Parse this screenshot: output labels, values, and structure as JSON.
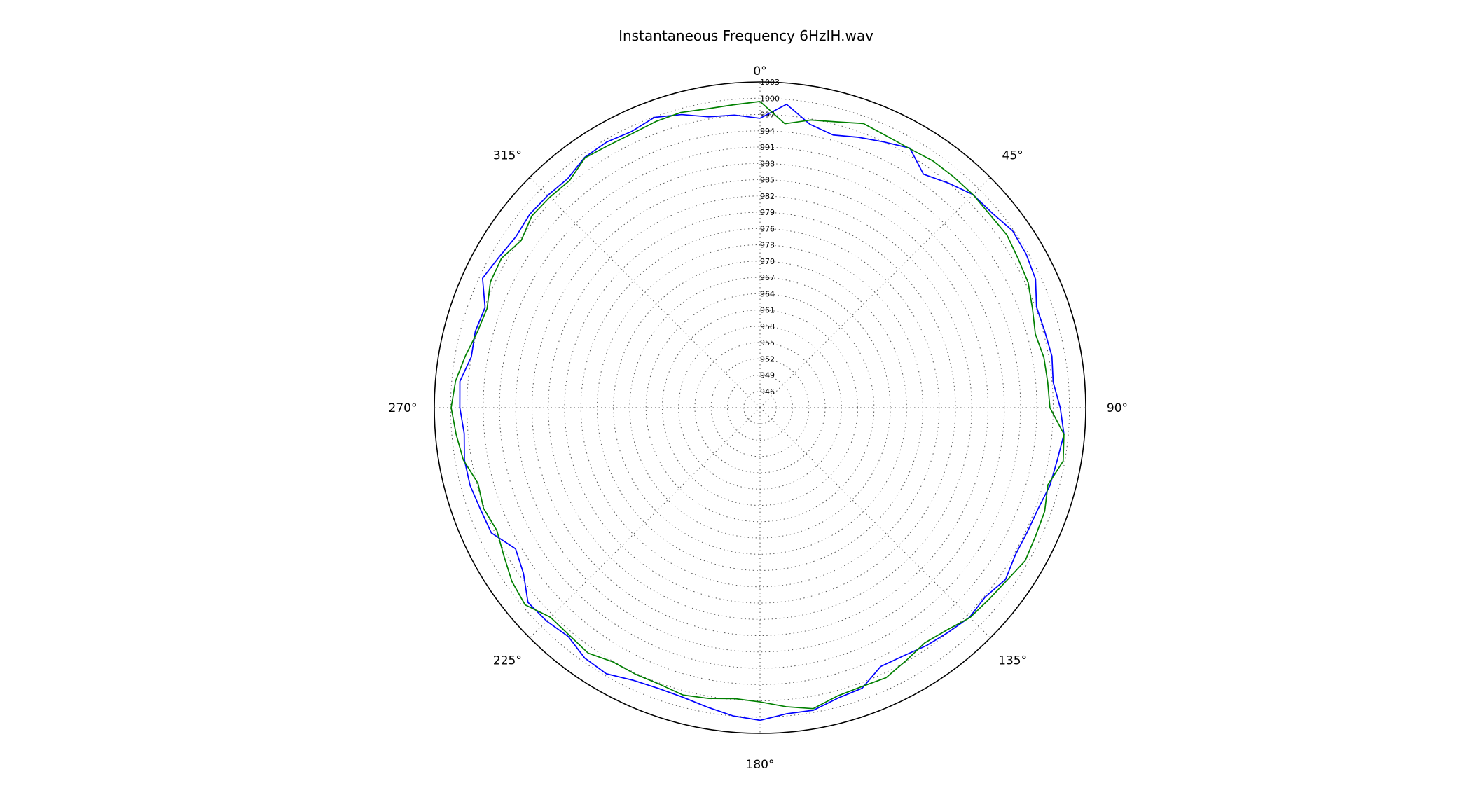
{
  "chart_data": {
    "type": "line",
    "projection": "polar",
    "title": "Instantaneous Frequency  6HzIH.wav",
    "theta_direction": "clockwise",
    "theta_zero": "top",
    "theta_ticks": [
      {
        "deg": 0,
        "label": "0°"
      },
      {
        "deg": 45,
        "label": "45°"
      },
      {
        "deg": 90,
        "label": "90°"
      },
      {
        "deg": 135,
        "label": "135°"
      },
      {
        "deg": 180,
        "label": "180°"
      },
      {
        "deg": 225,
        "label": "225°"
      },
      {
        "deg": 270,
        "label": "270°"
      },
      {
        "deg": 315,
        "label": "315°"
      }
    ],
    "rlim": [
      943,
      1003
    ],
    "r_ticks": [
      946,
      949,
      952,
      955,
      958,
      961,
      964,
      967,
      970,
      973,
      976,
      979,
      982,
      985,
      988,
      991,
      994,
      997,
      1000,
      1003
    ],
    "grid": true,
    "colors": {
      "series_1": "#0000ff",
      "series_2": "#008000"
    },
    "series": [
      {
        "color": "#0000ff",
        "theta": [
          0,
          5,
          10,
          15,
          20,
          25,
          30,
          35,
          40,
          45,
          50,
          55,
          60,
          65,
          70,
          75,
          80,
          85,
          90,
          95,
          100,
          105,
          110,
          115,
          120,
          125,
          130,
          135,
          140,
          145,
          150,
          155,
          160,
          165,
          170,
          175,
          180,
          185,
          190,
          195,
          200,
          205,
          210,
          215,
          220,
          225,
          230,
          235,
          240,
          245,
          250,
          255,
          260,
          265,
          270,
          275,
          280,
          285,
          290,
          295,
          300,
          305,
          310,
          315,
          320,
          325,
          330,
          335,
          340,
          345,
          350,
          355,
          360
        ],
        "r": [
          996.3,
          999.1,
          996.0,
          995.0,
          996.0,
          997.0,
          998.2,
          995.5,
          997.0,
          998.5,
          998.8,
          999.8,
          999.6,
          999.0,
          997.2,
          997.3,
          997.6,
          997.2,
          998.3,
          999.2,
          998.6,
          998.3,
          997.5,
          997.3,
          997.3,
          998.2,
          997.2,
          997.6,
          997.0,
          996.5,
          995.8,
          995.6,
          998.0,
          998.4,
          999.6,
          999.6,
          1000.6,
          1000.0,
          999.0,
          998.2,
          998.0,
          998.4,
          999.6,
          999.3,
          998.0,
          998.6,
          998.8,
          996.2,
          995.0,
          997.6,
          997.8,
          998.3,
          998.3,
          997.7,
          998.3,
          998.5,
          997.0,
          997.3,
          996.9,
          999.4,
          998.5,
          997.9,
          998.4,
          998.3,
          998.1,
          999.3,
          999.5,
          999.1,
          999.9,
          998.9,
          997.4,
          997.1,
          996.3
        ]
      },
      {
        "color": "#008000",
        "theta": [
          0,
          5,
          10,
          15,
          20,
          25,
          30,
          35,
          40,
          45,
          50,
          55,
          60,
          65,
          70,
          75,
          80,
          85,
          90,
          95,
          100,
          105,
          110,
          115,
          120,
          125,
          130,
          135,
          140,
          145,
          150,
          155,
          160,
          165,
          170,
          175,
          180,
          185,
          190,
          195,
          200,
          205,
          210,
          215,
          220,
          225,
          230,
          235,
          240,
          245,
          250,
          255,
          260,
          265,
          270,
          275,
          280,
          285,
          290,
          295,
          300,
          305,
          310,
          315,
          320,
          325,
          330,
          335,
          340,
          345,
          350,
          355,
          360
        ],
        "r": [
          999.4,
          995.5,
          996.8,
          997.5,
          998.7,
          998.2,
          998.1,
          998.5,
          998.5,
          998.5,
          998.3,
          998.5,
          997.9,
          997.5,
          996.4,
          995.5,
          996.1,
          996.2,
          996.4,
          999.2,
          999.7,
          997.9,
          998.8,
          999.0,
          999.4,
          998.5,
          998.0,
          997.7,
          996.5,
          995.9,
          996.8,
          997.9,
          997.7,
          998.0,
          999.3,
          998.3,
          997.2,
          996.8,
          997.4,
          997.8,
          997.2,
          997.2,
          997.1,
          998.2,
          997.7,
          997.6,
          999.5,
          998.8,
          997.5,
          996.5,
          997.2,
          996.8,
          998.5,
          999.2,
          999.9,
          999.3,
          998.1,
          996.9,
          996.5,
          997.8,
          998.0,
          996.7,
          997.9,
          997.8,
          997.6,
          999.2,
          998.8,
          998.7,
          999.1,
          999.3,
          998.9,
          999.0,
          999.4
        ]
      }
    ]
  }
}
